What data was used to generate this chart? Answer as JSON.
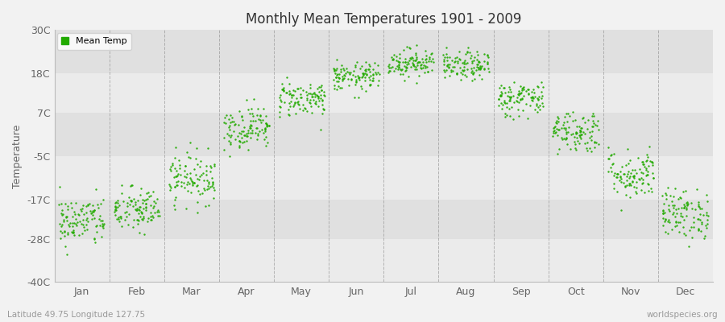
{
  "title": "Monthly Mean Temperatures 1901 - 2009",
  "ylabel": "Temperature",
  "months": [
    "Jan",
    "Feb",
    "Mar",
    "Apr",
    "May",
    "Jun",
    "Jul",
    "Aug",
    "Sep",
    "Oct",
    "Nov",
    "Dec"
  ],
  "yticks": [
    -40,
    -28,
    -17,
    -5,
    7,
    18,
    30
  ],
  "ytick_labels": [
    "-40C",
    "-28C",
    "-17C",
    "-5C",
    "7C",
    "18C",
    "30C"
  ],
  "ylim": [
    -40,
    30
  ],
  "dot_color": "#22aa00",
  "bg_color": "#f2f2f2",
  "plot_bg_color_light": "#ebebeb",
  "plot_bg_color_dark": "#e0e0e0",
  "grid_color": "#999999",
  "legend_label": "Mean Temp",
  "bottom_left_text": "Latitude 49.75 Longitude 127.75",
  "bottom_right_text": "worldspecies.org",
  "n_years": 109,
  "monthly_means": [
    -23,
    -20,
    -11,
    3,
    11,
    17,
    21,
    20,
    11,
    2,
    -10,
    -21
  ],
  "monthly_stds": [
    3.5,
    3.2,
    3.5,
    3.0,
    2.5,
    2.0,
    2.0,
    2.0,
    2.5,
    3.0,
    3.5,
    3.5
  ]
}
